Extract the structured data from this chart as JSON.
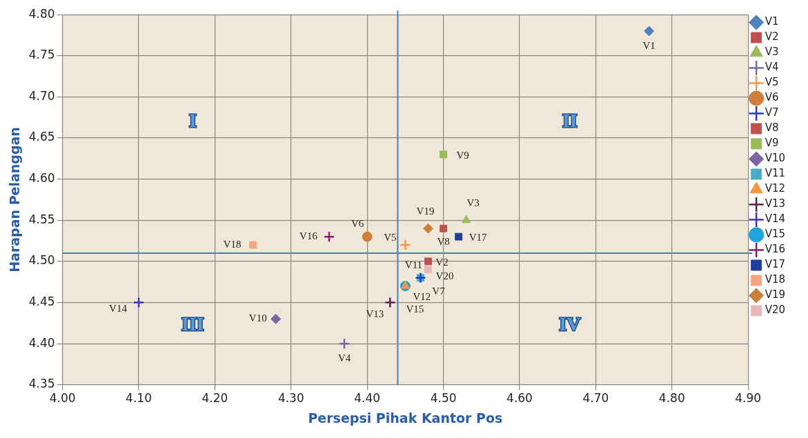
{
  "chart_data": {
    "type": "scatter",
    "xlabel": "Persepsi Pihak Kantor Pos",
    "ylabel": "Harapan Pelanggan",
    "xlim": [
      4.0,
      4.9
    ],
    "xticks": [
      {
        "value": 4.0,
        "label": "4.00"
      },
      {
        "value": 4.1,
        "label": "4.10"
      },
      {
        "value": 4.2,
        "label": "4.20"
      },
      {
        "value": 4.3,
        "label": "4.30"
      },
      {
        "value": 4.4,
        "label": "4.40"
      },
      {
        "value": 4.5,
        "label": "4.50"
      },
      {
        "value": 4.6,
        "label": "4.60"
      },
      {
        "value": 4.7,
        "label": "4.70"
      },
      {
        "value": 4.8,
        "label": "4.80"
      },
      {
        "value": 4.9,
        "label": "4.90"
      }
    ],
    "ylim": [
      4.35,
      4.8
    ],
    "yticks": [
      {
        "value": 4.35,
        "label": "4.35"
      },
      {
        "value": 4.4,
        "label": "4.40"
      },
      {
        "value": 4.45,
        "label": "4.45"
      },
      {
        "value": 4.5,
        "label": "4.50"
      },
      {
        "value": 4.55,
        "label": "4.55"
      },
      {
        "value": 4.6,
        "label": "4.60"
      },
      {
        "value": 4.65,
        "label": "4.65"
      },
      {
        "value": 4.7,
        "label": "4.70"
      },
      {
        "value": 4.75,
        "label": "4.75"
      },
      {
        "value": 4.8,
        "label": "4.80"
      }
    ],
    "grid": true,
    "legend": "right",
    "series": [
      {
        "name": "V1",
        "color": "#4f81bd",
        "marker": "diamond",
        "x": [
          4.77
        ],
        "values": [
          4.78
        ]
      },
      {
        "name": "V2",
        "color": "#c0504d",
        "marker": "square",
        "x": [
          4.48
        ],
        "values": [
          4.5
        ]
      },
      {
        "name": "V3",
        "color": "#9bbb59",
        "marker": "triangle",
        "x": [
          4.53
        ],
        "values": [
          4.55
        ]
      },
      {
        "name": "V4",
        "color": "#8064a2",
        "marker": "cross",
        "x": [
          4.37
        ],
        "values": [
          4.4
        ]
      },
      {
        "name": "V5",
        "color": "#f79646",
        "marker": "cross",
        "x": [
          4.45
        ],
        "values": [
          4.52
        ]
      },
      {
        "name": "V6",
        "color": "#d07f3a",
        "marker": "circle",
        "x": [
          4.4
        ],
        "values": [
          4.53
        ]
      },
      {
        "name": "V7",
        "color": "#1f3fbf",
        "marker": "cross",
        "x": [
          4.47
        ],
        "values": [
          4.48
        ]
      },
      {
        "name": "V8",
        "color": "#c0504d",
        "marker": "square",
        "x": [
          4.5
        ],
        "values": [
          4.54
        ]
      },
      {
        "name": "V9",
        "color": "#9bbb59",
        "marker": "square",
        "x": [
          4.5
        ],
        "values": [
          4.63
        ]
      },
      {
        "name": "V10",
        "color": "#8064a2",
        "marker": "diamond",
        "x": [
          4.28
        ],
        "values": [
          4.43
        ]
      },
      {
        "name": "V11",
        "color": "#4bacc6",
        "marker": "square",
        "x": [
          4.47
        ],
        "values": [
          4.48
        ]
      },
      {
        "name": "V12",
        "color": "#f79646",
        "marker": "triangle",
        "x": [
          4.45
        ],
        "values": [
          4.47
        ]
      },
      {
        "name": "V13",
        "color": "#5a1f4a",
        "marker": "cross",
        "x": [
          4.43
        ],
        "values": [
          4.45
        ]
      },
      {
        "name": "V14",
        "color": "#3a2fbf",
        "marker": "cross",
        "x": [
          4.1
        ],
        "values": [
          4.45
        ]
      },
      {
        "name": "V15",
        "color": "#1fa3d8",
        "marker": "circle",
        "x": [
          4.45
        ],
        "values": [
          4.47
        ]
      },
      {
        "name": "V16",
        "color": "#8b1a6b",
        "marker": "cross",
        "x": [
          4.35
        ],
        "values": [
          4.53
        ]
      },
      {
        "name": "V17",
        "color": "#1f3f9f",
        "marker": "square",
        "x": [
          4.52
        ],
        "values": [
          4.53
        ]
      },
      {
        "name": "V18",
        "color": "#f4a582",
        "marker": "square",
        "x": [
          4.25
        ],
        "values": [
          4.52
        ]
      },
      {
        "name": "V19",
        "color": "#c8803c",
        "marker": "diamond",
        "x": [
          4.48
        ],
        "values": [
          4.54
        ]
      },
      {
        "name": "V20",
        "color": "#e6b9b8",
        "marker": "square",
        "x": [
          4.48
        ],
        "values": [
          4.49
        ]
      }
    ],
    "ref_lines": [
      {
        "axis": "x",
        "value": 4.44,
        "color": "#4a7ebb"
      },
      {
        "axis": "y",
        "value": 4.51,
        "color": "#4a7ebb"
      }
    ],
    "annotations": [
      "I",
      "II",
      "III",
      "IV"
    ]
  }
}
